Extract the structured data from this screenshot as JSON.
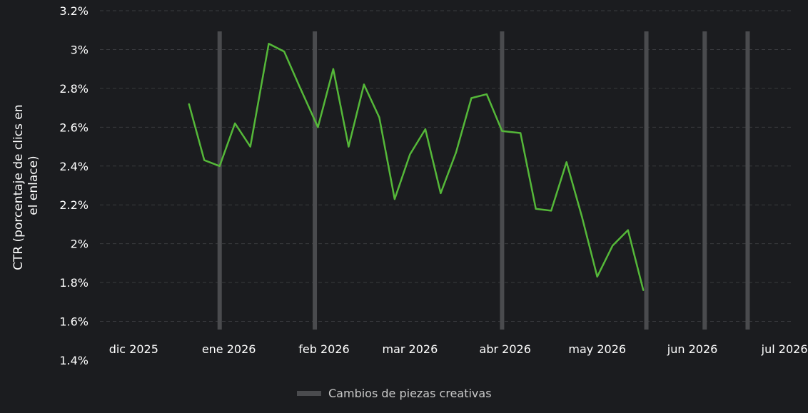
{
  "chart_data": {
    "type": "line",
    "ylabel_lines": [
      "CTR (porcentaje de clics en",
      "el enlace)"
    ],
    "ylim": [
      1.4,
      3.2
    ],
    "y_ticks": [
      {
        "value": 1.4,
        "label": "1.4%"
      },
      {
        "value": 1.6,
        "label": "1.6%"
      },
      {
        "value": 1.8,
        "label": "1.8%"
      },
      {
        "value": 2.0,
        "label": "2%"
      },
      {
        "value": 2.2,
        "label": "2.2%"
      },
      {
        "value": 2.4,
        "label": "2.4%"
      },
      {
        "value": 2.6,
        "label": "2.6%"
      },
      {
        "value": 2.8,
        "label": "2.8%"
      },
      {
        "value": 3.0,
        "label": "3%"
      },
      {
        "value": 3.2,
        "label": "3.2%"
      }
    ],
    "xlim": [
      "2025-11-20",
      "2026-07-04"
    ],
    "x_ticks": [
      {
        "date": "2025-12-01",
        "label": "dic 2025"
      },
      {
        "date": "2026-01-01",
        "label": "ene 2026"
      },
      {
        "date": "2026-02-01",
        "label": "feb 2026"
      },
      {
        "date": "2026-03-01",
        "label": "mar 2026"
      },
      {
        "date": "2026-04-01",
        "label": "abr 2026"
      },
      {
        "date": "2026-05-01",
        "label": "may 2026"
      },
      {
        "date": "2026-06-01",
        "label": "jun 2026"
      },
      {
        "date": "2026-07-01",
        "label": "jul 2026"
      }
    ],
    "grid": true,
    "line_color": "#55b839",
    "marker_color": "#4a4b4e",
    "legend": {
      "position": "bottom-center",
      "label": "Cambios de piezas creativas"
    },
    "markers": [
      "2025-12-29",
      "2026-01-29",
      "2026-03-31",
      "2026-05-17",
      "2026-06-05",
      "2026-06-19"
    ],
    "series": [
      {
        "points": [
          {
            "x": "2025-12-19",
            "y": 2.72
          },
          {
            "x": "2025-12-24",
            "y": 2.43
          },
          {
            "x": "2025-12-29",
            "y": 2.4
          },
          {
            "x": "2026-01-03",
            "y": 2.62
          },
          {
            "x": "2026-01-08",
            "y": 2.5
          },
          {
            "x": "2026-01-14",
            "y": 3.03
          },
          {
            "x": "2026-01-19",
            "y": 2.99
          },
          {
            "x": "2026-01-24",
            "y": 2.81
          },
          {
            "x": "2026-01-30",
            "y": 2.6
          },
          {
            "x": "2026-02-04",
            "y": 2.9
          },
          {
            "x": "2026-02-09",
            "y": 2.5
          },
          {
            "x": "2026-02-14",
            "y": 2.82
          },
          {
            "x": "2026-02-19",
            "y": 2.65
          },
          {
            "x": "2026-02-24",
            "y": 2.23
          },
          {
            "x": "2026-03-01",
            "y": 2.46
          },
          {
            "x": "2026-03-06",
            "y": 2.59
          },
          {
            "x": "2026-03-11",
            "y": 2.26
          },
          {
            "x": "2026-03-16",
            "y": 2.47
          },
          {
            "x": "2026-03-21",
            "y": 2.75
          },
          {
            "x": "2026-03-26",
            "y": 2.77
          },
          {
            "x": "2026-03-31",
            "y": 2.58
          },
          {
            "x": "2026-04-06",
            "y": 2.57
          },
          {
            "x": "2026-04-11",
            "y": 2.18
          },
          {
            "x": "2026-04-16",
            "y": 2.17
          },
          {
            "x": "2026-04-21",
            "y": 2.42
          },
          {
            "x": "2026-04-26",
            "y": 2.14
          },
          {
            "x": "2026-05-01",
            "y": 1.83
          },
          {
            "x": "2026-05-06",
            "y": 1.99
          },
          {
            "x": "2026-05-11",
            "y": 2.07
          },
          {
            "x": "2026-05-16",
            "y": 1.76
          }
        ]
      }
    ]
  }
}
